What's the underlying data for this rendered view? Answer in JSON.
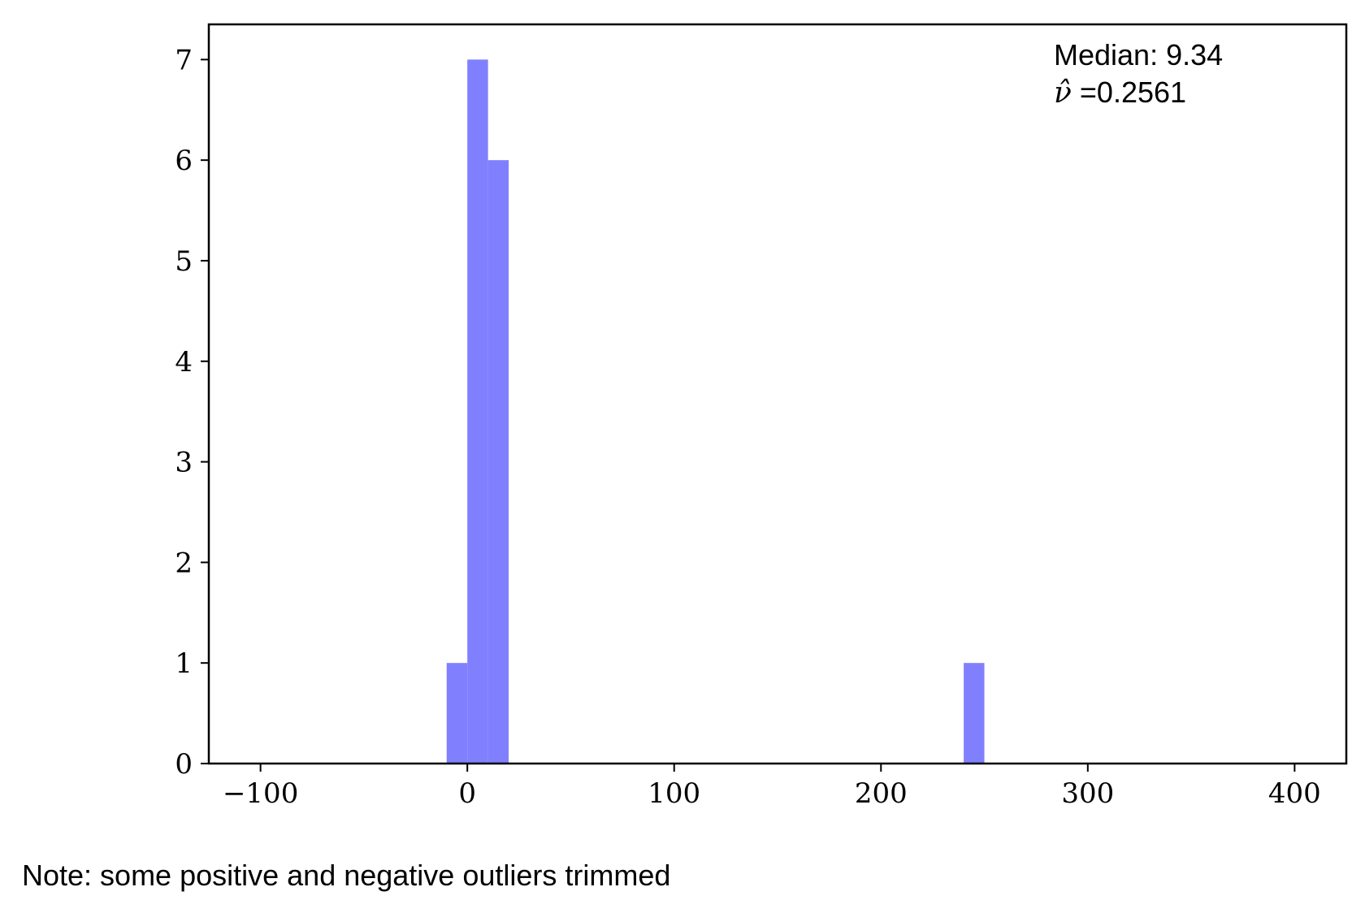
{
  "chart_data": {
    "type": "bar",
    "bins": [
      {
        "x0": -10,
        "x1": 0,
        "count": 1
      },
      {
        "x0": 0,
        "x1": 10,
        "count": 7
      },
      {
        "x0": 10,
        "x1": 20,
        "count": 6
      },
      {
        "x0": 240,
        "x1": 250,
        "count": 1
      }
    ],
    "bar_color": "#8080ff",
    "xlim": [
      -125,
      425
    ],
    "ylim": [
      0,
      7.35
    ],
    "xticks": [
      -100,
      0,
      100,
      200,
      300,
      400
    ],
    "xtick_labels": [
      "−100",
      "0",
      "100",
      "200",
      "300",
      "400"
    ],
    "yticks": [
      0,
      1,
      2,
      3,
      4,
      5,
      6,
      7
    ],
    "ytick_labels": [
      "0",
      "1",
      "2",
      "3",
      "4",
      "5",
      "6",
      "7"
    ],
    "title": "",
    "xlabel": "",
    "ylabel": "",
    "grid": false,
    "annotations": {
      "median": "Median: 9.34",
      "nu_symbol": "ν̂",
      "nu_value": " =0.2561"
    }
  },
  "note": "Note: some positive and negative outliers trimmed"
}
